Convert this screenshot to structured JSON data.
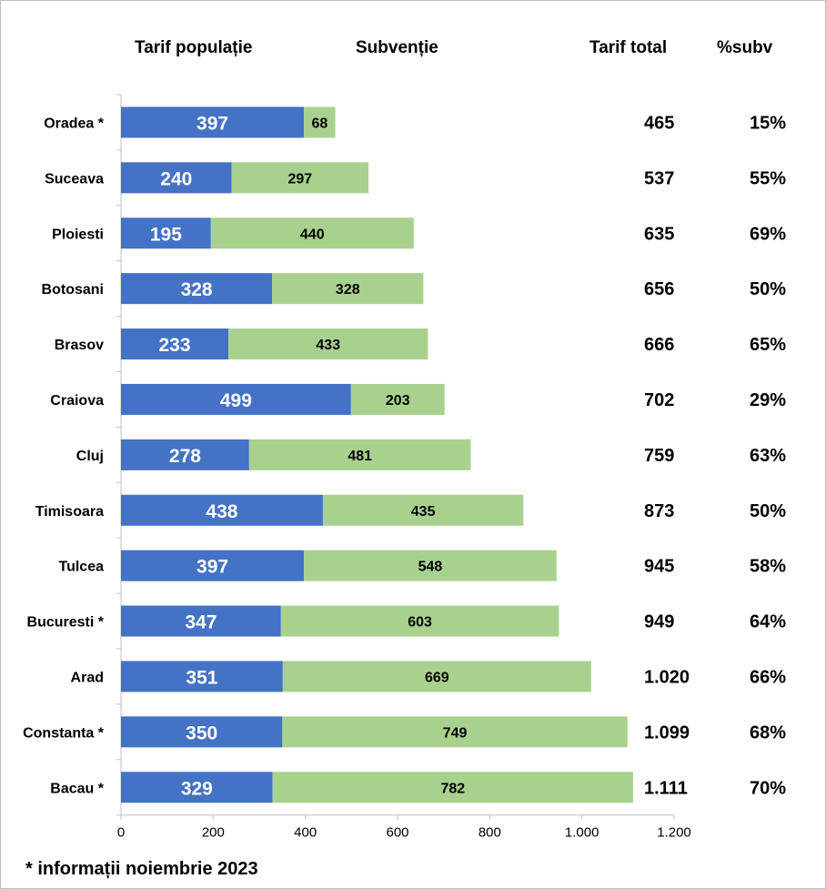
{
  "headers": {
    "tarif_populatie": "Tarif populație",
    "subventie": "Subvenție",
    "tarif_total": "Tarif total",
    "pct_subv": "%subv"
  },
  "footnote": "* informații noiembrie 2023",
  "colors": {
    "populatie": "#4472c4",
    "subventie": "#a9d18e",
    "axis": "#bfbfbf",
    "text": "#000000",
    "bar_label_light": "#ffffff"
  },
  "chart_data": {
    "type": "bar",
    "orientation": "horizontal",
    "stacked": true,
    "categories": [
      "Oradea *",
      "Suceava",
      "Ploiesti",
      "Botosani",
      "Brasov",
      "Craiova",
      "Cluj",
      "Timisoara",
      "Tulcea",
      "Bucuresti *",
      "Arad",
      "Constanta *",
      "Bacau *"
    ],
    "series": [
      {
        "name": "Tarif populație",
        "values": [
          397,
          240,
          195,
          328,
          233,
          499,
          278,
          438,
          397,
          347,
          351,
          350,
          329
        ]
      },
      {
        "name": "Subvenție",
        "values": [
          68,
          297,
          440,
          328,
          433,
          203,
          481,
          435,
          548,
          603,
          669,
          749,
          782
        ]
      }
    ],
    "tarif_total_labels": [
      "465",
      "537",
      "635",
      "656",
      "666",
      "702",
      "759",
      "873",
      "945",
      "949",
      "1.020",
      "1.099",
      "1.111"
    ],
    "pct_subv_labels": [
      "15%",
      "55%",
      "69%",
      "50%",
      "65%",
      "29%",
      "63%",
      "50%",
      "58%",
      "64%",
      "66%",
      "68%",
      "70%"
    ],
    "x_ticks": [
      0,
      200,
      400,
      600,
      800,
      1000,
      1200
    ],
    "x_tick_labels": [
      "0",
      "200",
      "400",
      "600",
      "800",
      "1.000",
      "1.200"
    ],
    "xlim": [
      0,
      1200
    ],
    "grid": false,
    "legend": "top",
    "title": "",
    "xlabel": "",
    "ylabel": ""
  }
}
